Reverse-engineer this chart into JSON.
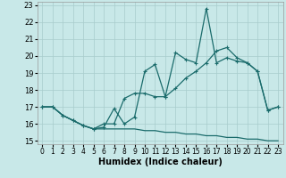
{
  "xlabel": "Humidex (Indice chaleur)",
  "xlim": [
    -0.5,
    23.5
  ],
  "ylim": [
    14.8,
    23.2
  ],
  "xticks": [
    0,
    1,
    2,
    3,
    4,
    5,
    6,
    7,
    8,
    9,
    10,
    11,
    12,
    13,
    14,
    15,
    16,
    17,
    18,
    19,
    20,
    21,
    22,
    23
  ],
  "yticks": [
    15,
    16,
    17,
    18,
    19,
    20,
    21,
    22,
    23
  ],
  "bg_color": "#c8e8e8",
  "grid_color": "#a8cccc",
  "line_color": "#1a6b6b",
  "line1_x": [
    0,
    1,
    2,
    3,
    4,
    5,
    6,
    7,
    8,
    9,
    10,
    11,
    12,
    13,
    14,
    15,
    16,
    17,
    18,
    19,
    20,
    21,
    22,
    23
  ],
  "line1_y": [
    17.0,
    17.0,
    16.5,
    16.2,
    15.9,
    15.7,
    15.8,
    16.9,
    16.0,
    16.4,
    19.1,
    19.5,
    17.6,
    20.2,
    19.8,
    19.6,
    22.8,
    19.6,
    19.9,
    19.7,
    19.6,
    19.1,
    16.8,
    17.0
  ],
  "line2_x": [
    0,
    1,
    2,
    3,
    4,
    5,
    6,
    7,
    8,
    9,
    10,
    11,
    12,
    13,
    14,
    15,
    16,
    17,
    18,
    19,
    20,
    21,
    22,
    23
  ],
  "line2_y": [
    17.0,
    17.0,
    16.5,
    16.2,
    15.9,
    15.7,
    16.0,
    16.0,
    17.5,
    17.8,
    17.8,
    17.6,
    17.6,
    18.1,
    18.7,
    19.1,
    19.6,
    20.3,
    20.5,
    19.9,
    19.6,
    19.1,
    16.8,
    17.0
  ],
  "line3_x": [
    0,
    1,
    2,
    3,
    4,
    5,
    6,
    7,
    8,
    9,
    10,
    11,
    12,
    13,
    14,
    15,
    16,
    17,
    18,
    19,
    20,
    21,
    22,
    23
  ],
  "line3_y": [
    17.0,
    17.0,
    16.5,
    16.2,
    15.9,
    15.7,
    15.7,
    15.7,
    15.7,
    15.7,
    15.6,
    15.6,
    15.5,
    15.5,
    15.4,
    15.4,
    15.3,
    15.3,
    15.2,
    15.2,
    15.1,
    15.1,
    15.0,
    15.0
  ],
  "line1_has_markers": true,
  "line2_has_markers": true,
  "line3_has_markers": false,
  "lw": 0.9,
  "ms": 3.5
}
